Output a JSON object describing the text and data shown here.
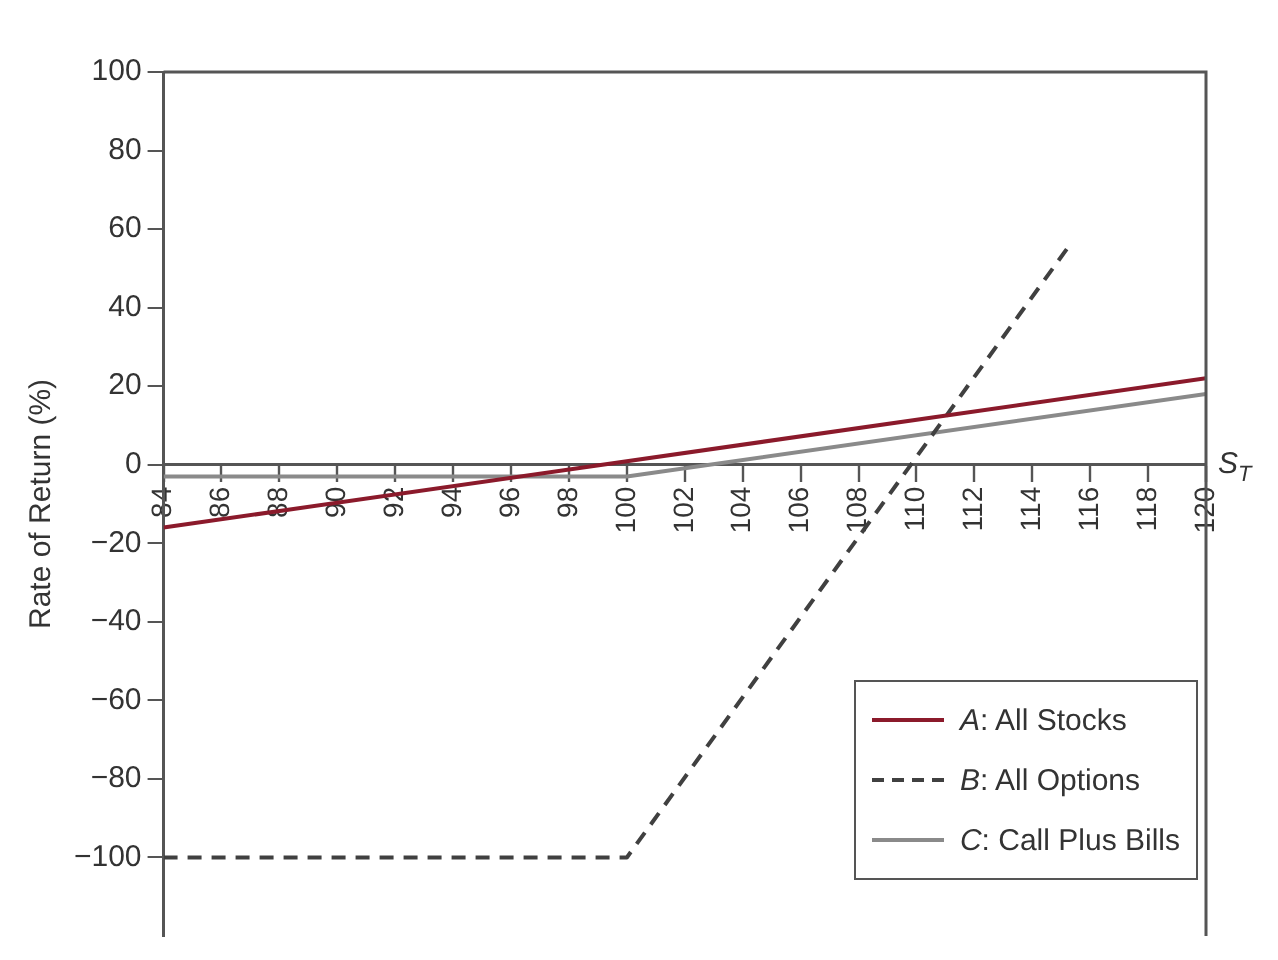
{
  "chart_data": {
    "type": "line",
    "xlabel": "S$_{T}$",
    "ylabel": "Rate of Return (%)",
    "xlim": [
      84,
      120
    ],
    "xticks": [
      84,
      86,
      88,
      90,
      92,
      94,
      96,
      98,
      100,
      102,
      104,
      106,
      108,
      110,
      112,
      114,
      116,
      118,
      120
    ],
    "ylim": [
      -120,
      100
    ],
    "yticks": [
      -100,
      -80,
      -60,
      -40,
      -20,
      0,
      20,
      40,
      60,
      80,
      100
    ],
    "grid": false,
    "legend": "bottom right",
    "marker": "none",
    "series": [
      {
        "name": "A: All Stocks",
        "color": "#8b1a2b",
        "line_style": "solid",
        "x": [
          84,
          120
        ],
        "values": [
          -16,
          22
        ]
      },
      {
        "name": "B: All Options",
        "color": "#404040",
        "line_style": "dashed",
        "x": [
          84,
          100,
          115.2
        ],
        "values": [
          -100,
          -100,
          55
        ]
      },
      {
        "name": "C: Call Plus Bills",
        "color": "#8a8a8a",
        "line_style": "solid",
        "x": [
          84,
          100,
          120
        ],
        "values": [
          -3,
          -3,
          18
        ]
      }
    ]
  }
}
